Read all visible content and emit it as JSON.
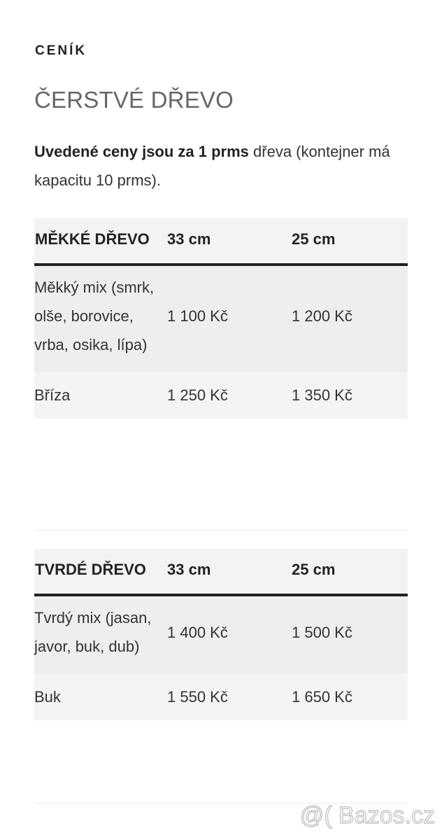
{
  "heading": "CENÍK",
  "subtitle": "ČERSTVÉ DŘEVO",
  "intro": {
    "bold": "Uvedené ceny jsou za 1 prms",
    "rest": " dřeva (kontejner má kapacitu 10 prms)."
  },
  "tables": [
    {
      "headers": [
        "MĚKKÉ DŘEVO",
        "33 cm",
        "25 cm"
      ],
      "rows": [
        [
          "Měkký mix (smrk, olše, borovice, vrba, osika, lípa)",
          "1 100 Kč",
          "1 200 Kč"
        ],
        [
          "Bříza",
          "1 250 Kč",
          "1 350 Kč"
        ]
      ]
    },
    {
      "headers": [
        "TVRDÉ DŘEVO",
        "33 cm",
        "25 cm"
      ],
      "rows": [
        [
          "Tvrdý mix (jasan, javor, buk, dub)",
          "1 400 Kč",
          "1 500 Kč"
        ],
        [
          "Buk",
          "1 550 Kč",
          "1 650 Kč"
        ]
      ]
    }
  ],
  "watermark": "@( Bazos.cz"
}
